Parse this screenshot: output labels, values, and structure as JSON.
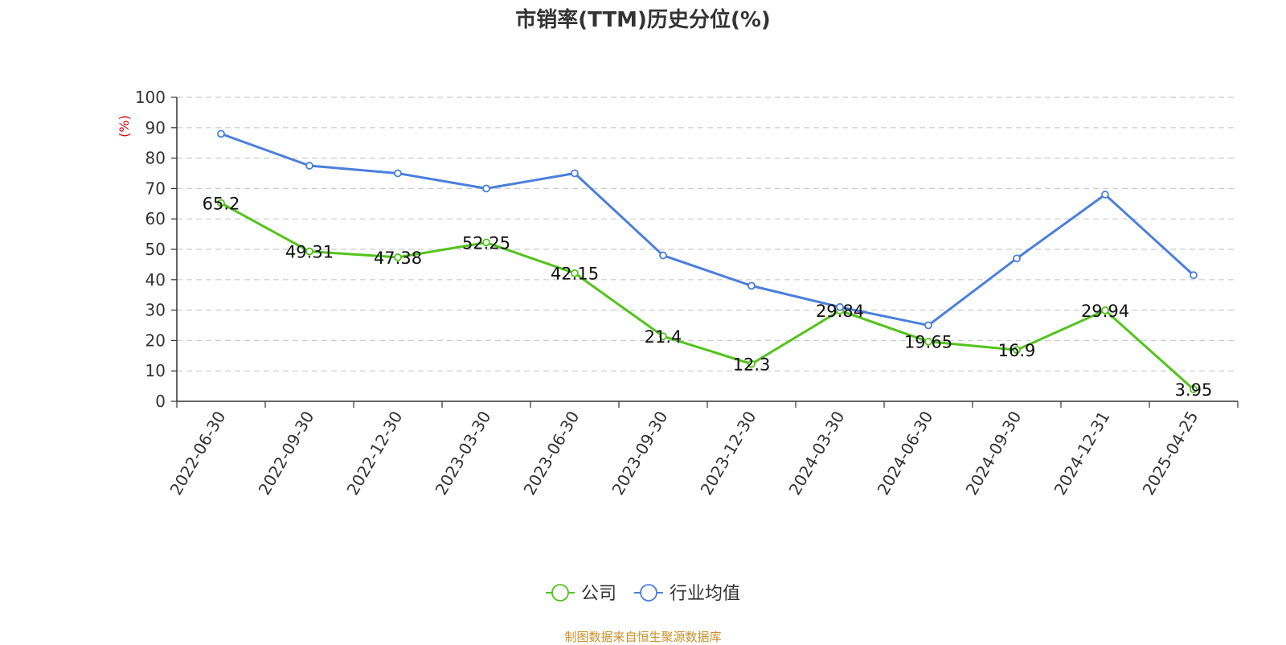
{
  "chart_data": {
    "type": "line",
    "title": "市销率(TTM)历史分位(%)",
    "ylabel": "(%)",
    "xlabel": "",
    "ylim": [
      0,
      100
    ],
    "yticks": [
      0,
      10,
      20,
      30,
      40,
      50,
      60,
      70,
      80,
      90,
      100
    ],
    "grid": "horizontal dashed",
    "legend_position": "bottom-center",
    "categories": [
      "2022-06-30",
      "2022-09-30",
      "2022-12-30",
      "2023-03-30",
      "2023-06-30",
      "2023-09-30",
      "2023-12-30",
      "2024-03-30",
      "2024-06-30",
      "2024-09-30",
      "2024-12-31",
      "2025-04-25"
    ],
    "series": [
      {
        "name": "公司",
        "color": "#52c41a",
        "values": [
          65.2,
          49.31,
          47.38,
          52.25,
          42.15,
          21.4,
          12.3,
          29.84,
          19.65,
          16.9,
          29.94,
          3.95
        ],
        "labels": [
          "65.2",
          "49.31",
          "47.38",
          "52.25",
          "42.15",
          "21.4",
          "12.3",
          "29.84",
          "19.65",
          "16.9",
          "29.94",
          "3.95"
        ]
      },
      {
        "name": "行业均值",
        "color": "#4a7fdc",
        "values": [
          88,
          77.5,
          75,
          70,
          75,
          48,
          38,
          31,
          25,
          47,
          68,
          41.5
        ]
      }
    ]
  },
  "source_note": "制图数据来自恒生聚源数据库"
}
